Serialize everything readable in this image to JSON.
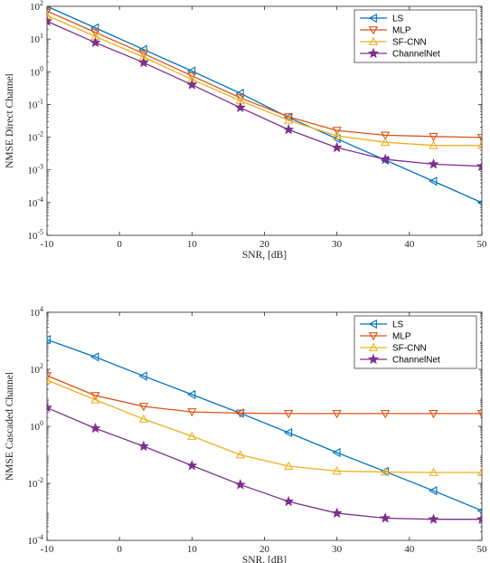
{
  "chart_data": [
    {
      "type": "line",
      "xlabel": "SNR, [dB]",
      "ylabel": "NMSE Direct Channel",
      "xlim": [
        -10,
        50
      ],
      "ylim": [
        1e-05,
        100
      ],
      "yscale": "log",
      "grid": false,
      "legend_position": "top-right",
      "xticks": [
        -10,
        0,
        10,
        20,
        30,
        40,
        50
      ],
      "yticks": [
        1e-05,
        0.0001,
        0.001,
        0.01,
        0.1,
        1,
        10,
        100
      ],
      "x": [
        -10,
        -3.33,
        3.33,
        10,
        16.67,
        23.33,
        30,
        36.67,
        43.33,
        50
      ],
      "series": [
        {
          "name": "LS",
          "color": "#0072BD",
          "marker": "triangle-left",
          "values": [
            100,
            22,
            4.8,
            1.05,
            0.22,
            0.04,
            0.009,
            0.002,
            0.00045,
            0.0001
          ]
        },
        {
          "name": "MLP",
          "color": "#D95319",
          "marker": "triangle-down",
          "values": [
            72,
            16,
            3.6,
            0.75,
            0.16,
            0.042,
            0.016,
            0.0115,
            0.0105,
            0.0098
          ]
        },
        {
          "name": "SF-CNN",
          "color": "#EDB120",
          "marker": "triangle-up",
          "values": [
            52,
            12,
            2.8,
            0.58,
            0.13,
            0.033,
            0.011,
            0.007,
            0.0056,
            0.0056
          ]
        },
        {
          "name": "ChannelNet",
          "color": "#7E2F8E",
          "marker": "star",
          "values": [
            35,
            7.8,
            1.9,
            0.4,
            0.08,
            0.017,
            0.0048,
            0.0021,
            0.0015,
            0.0013
          ]
        }
      ]
    },
    {
      "type": "line",
      "xlabel": "SNR, [dB]",
      "ylabel": "NMSE Cascaded Channel",
      "xlim": [
        -10,
        50
      ],
      "ylim": [
        0.0001,
        10000.0
      ],
      "yscale": "log",
      "grid": false,
      "legend_position": "top-right",
      "xticks": [
        -10,
        0,
        10,
        20,
        30,
        40,
        50
      ],
      "yticks": [
        0.0001,
        0.01,
        1,
        100,
        10000.0
      ],
      "x": [
        -10,
        -3.33,
        3.33,
        10,
        16.67,
        23.33,
        30,
        36.67,
        43.33,
        50
      ],
      "series": [
        {
          "name": "LS",
          "color": "#0072BD",
          "marker": "triangle-left",
          "values": [
            1100,
            270,
            58,
            13,
            2.9,
            0.6,
            0.12,
            0.026,
            0.0055,
            0.0011
          ]
        },
        {
          "name": "MLP",
          "color": "#D95319",
          "marker": "triangle-down",
          "values": [
            60,
            12,
            5,
            3.2,
            2.9,
            2.8,
            2.8,
            2.8,
            2.8,
            2.8
          ]
        },
        {
          "name": "SF-CNN",
          "color": "#EDB120",
          "marker": "triangle-up",
          "values": [
            42,
            8.5,
            1.8,
            0.45,
            0.1,
            0.04,
            0.027,
            0.025,
            0.024,
            0.024
          ]
        },
        {
          "name": "ChannelNet",
          "color": "#7E2F8E",
          "marker": "star",
          "values": [
            4.5,
            0.85,
            0.2,
            0.042,
            0.009,
            0.0023,
            0.0009,
            0.0006,
            0.00055,
            0.00055
          ]
        }
      ]
    }
  ]
}
